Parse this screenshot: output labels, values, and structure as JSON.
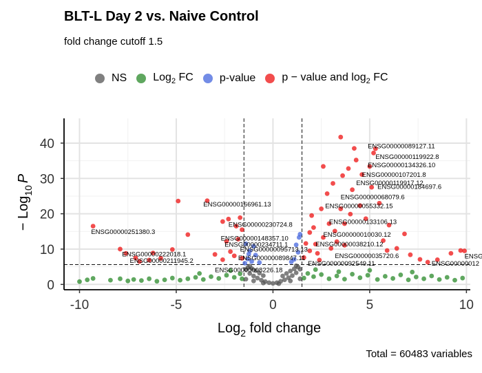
{
  "chart_data": {
    "type": "scatter",
    "title": "BLT-L Day 2 vs. Naive Control",
    "subtitle": "fold change cutoff 1.5",
    "caption": "Total = 60483 variables",
    "xlabel": {
      "base": "Log",
      "sub": "2",
      "rest": " fold change"
    },
    "ylabel": {
      "pre": "− Log",
      "sub": "10",
      "italic": "P"
    },
    "xlim": [
      -10.8,
      10.2
    ],
    "ylim": [
      -1.5,
      47
    ],
    "xticks": [
      -10,
      -5,
      0,
      5,
      10
    ],
    "yticks": [
      0,
      10,
      20,
      30,
      40
    ],
    "grid": true,
    "legend_position": "top",
    "cutoffs": {
      "fold_change_x": [
        -1.5,
        1.5
      ],
      "p_value_y": 5.6
    },
    "legend": [
      {
        "key": "ns",
        "text": "NS",
        "color": "#555555"
      },
      {
        "key": "fc",
        "text": "Log",
        "sub": "2",
        "rest": " FC",
        "color": "#2a8a2a"
      },
      {
        "key": "p",
        "text": "p-value",
        "color": "#4466dd"
      },
      {
        "key": "both",
        "text": "p − value and log",
        "sub": "2",
        "rest": " FC",
        "color": "#ee1111"
      }
    ],
    "series": [
      {
        "key": "ns",
        "color": "#555555",
        "points": [
          [
            -1.4,
            4.2
          ],
          [
            -1.2,
            3.1
          ],
          [
            -1.0,
            2.4
          ],
          [
            -0.8,
            1.8
          ],
          [
            -0.6,
            1.2
          ],
          [
            -0.4,
            0.8
          ],
          [
            -0.2,
            0.5
          ],
          [
            0.0,
            0.3
          ],
          [
            0.2,
            0.5
          ],
          [
            0.4,
            0.9
          ],
          [
            0.6,
            1.3
          ],
          [
            0.8,
            1.9
          ],
          [
            1.0,
            2.5
          ],
          [
            1.2,
            3.3
          ],
          [
            1.4,
            4.3
          ],
          [
            -1.3,
            4.8
          ],
          [
            -1.1,
            4.5
          ],
          [
            -0.9,
            3.9
          ],
          [
            -0.7,
            3.2
          ],
          [
            -0.5,
            2.5
          ],
          [
            0.5,
            2.4
          ],
          [
            0.7,
            3.1
          ],
          [
            0.9,
            3.8
          ],
          [
            1.1,
            4.4
          ],
          [
            1.3,
            4.9
          ],
          [
            -1.4,
            1.5
          ],
          [
            -1.0,
            1.0
          ],
          [
            -0.5,
            0.4
          ],
          [
            0.3,
            0.2
          ],
          [
            0.9,
            1.0
          ],
          [
            1.4,
            1.6
          ],
          [
            -1.2,
            5.2
          ],
          [
            1.2,
            5.3
          ]
        ]
      },
      {
        "key": "fc",
        "color": "#2a8a2a",
        "points": [
          [
            -10,
            0.8
          ],
          [
            -9.3,
            1.7
          ],
          [
            -8.4,
            1.2
          ],
          [
            -7.9,
            1.6
          ],
          [
            -7.5,
            1.0
          ],
          [
            -7.2,
            1.4
          ],
          [
            -6.8,
            1.1
          ],
          [
            -6.4,
            1.6
          ],
          [
            -6.0,
            0.9
          ],
          [
            -5.6,
            1.3
          ],
          [
            -5.2,
            1.8
          ],
          [
            -4.8,
            1.2
          ],
          [
            -4.4,
            1.6
          ],
          [
            -4.0,
            2.0
          ],
          [
            -3.6,
            1.4
          ],
          [
            -3.2,
            2.2
          ],
          [
            -2.8,
            1.7
          ],
          [
            -2.4,
            2.6
          ],
          [
            -2.0,
            2.0
          ],
          [
            -1.7,
            3.0
          ],
          [
            -1.6,
            1.6
          ],
          [
            1.6,
            1.8
          ],
          [
            1.8,
            3.1
          ],
          [
            2.1,
            2.2
          ],
          [
            2.5,
            2.8
          ],
          [
            2.9,
            1.6
          ],
          [
            3.3,
            2.4
          ],
          [
            3.7,
            1.5
          ],
          [
            4.1,
            2.9
          ],
          [
            4.5,
            1.9
          ],
          [
            4.9,
            2.6
          ],
          [
            5.4,
            1.4
          ],
          [
            5.8,
            2.3
          ],
          [
            6.2,
            1.7
          ],
          [
            6.6,
            2.7
          ],
          [
            7.0,
            1.3
          ],
          [
            7.4,
            2.1
          ],
          [
            7.8,
            1.6
          ],
          [
            8.2,
            2.4
          ],
          [
            8.6,
            1.4
          ],
          [
            9.0,
            2.0
          ],
          [
            9.4,
            1.2
          ],
          [
            9.8,
            1.8
          ],
          [
            -3.8,
            3.1
          ],
          [
            -2.2,
            3.9
          ],
          [
            2.2,
            4.2
          ],
          [
            3.4,
            3.6
          ],
          [
            5.0,
            4.0
          ],
          [
            7.2,
            3.5
          ],
          [
            -9.6,
            1.3
          ]
        ]
      },
      {
        "key": "p",
        "color": "#4466dd",
        "points": [
          [
            -1.45,
            6.0
          ],
          [
            -1.3,
            7.2
          ],
          [
            -1.1,
            6.5
          ],
          [
            -0.9,
            8.3
          ],
          [
            -0.7,
            6.2
          ],
          [
            -1.2,
            9.5
          ],
          [
            -1.0,
            10.8
          ],
          [
            1.1,
            7.1
          ],
          [
            1.3,
            9.1
          ],
          [
            1.2,
            11.2
          ],
          [
            1.35,
            13.3
          ],
          [
            1.4,
            14.2
          ],
          [
            -1.4,
            11.5
          ],
          [
            0.95,
            6.4
          ],
          [
            -1.25,
            8.6
          ]
        ]
      },
      {
        "key": "both",
        "color": "#ee1111",
        "points": [
          [
            -9.3,
            16.5
          ],
          [
            -7.9,
            10.0
          ],
          [
            -7.6,
            8.8
          ],
          [
            -6.9,
            6.5
          ],
          [
            -6.4,
            6.9
          ],
          [
            -5.2,
            9.9
          ],
          [
            -4.9,
            23.6
          ],
          [
            -4.4,
            14.1
          ],
          [
            -3.4,
            23.7
          ],
          [
            -2.6,
            17.8
          ],
          [
            -2.4,
            12.2
          ],
          [
            -2.2,
            9.3
          ],
          [
            -2.0,
            8.1
          ],
          [
            -1.8,
            12.8
          ],
          [
            -1.6,
            7.4
          ],
          [
            -1.7,
            18.9
          ],
          [
            -2.3,
            18.5
          ],
          [
            -1.9,
            16.5
          ],
          [
            -1.6,
            15.5
          ],
          [
            -2.6,
            7.0
          ],
          [
            -3.0,
            8.5
          ],
          [
            -5.8,
            7.4
          ],
          [
            -6.2,
            8.9
          ],
          [
            -7.1,
            7.5
          ],
          [
            1.6,
            7.6
          ],
          [
            1.7,
            11.6
          ],
          [
            1.9,
            14.7
          ],
          [
            2.0,
            19.5
          ],
          [
            2.1,
            16.1
          ],
          [
            2.2,
            11.4
          ],
          [
            2.3,
            8.8
          ],
          [
            2.5,
            21.4
          ],
          [
            2.6,
            13.3
          ],
          [
            2.8,
            25.7
          ],
          [
            2.9,
            17.2
          ],
          [
            3.0,
            10.2
          ],
          [
            3.1,
            28.6
          ],
          [
            3.2,
            15.1
          ],
          [
            3.3,
            12.1
          ],
          [
            3.5,
            21.4
          ],
          [
            3.6,
            30.8
          ],
          [
            3.7,
            17.2
          ],
          [
            3.9,
            32.8
          ],
          [
            4.0,
            19.9
          ],
          [
            4.1,
            26.8
          ],
          [
            4.3,
            35.2
          ],
          [
            4.5,
            22.3
          ],
          [
            4.6,
            31.1
          ],
          [
            4.8,
            18.6
          ],
          [
            5.0,
            33.4
          ],
          [
            5.1,
            27.5
          ],
          [
            5.3,
            38.4
          ],
          [
            5.5,
            23.0
          ],
          [
            5.7,
            12.4
          ],
          [
            6.0,
            16.8
          ],
          [
            6.4,
            10.2
          ],
          [
            6.8,
            14.3
          ],
          [
            3.5,
            41.7
          ],
          [
            4.2,
            38.5
          ],
          [
            5.2,
            37.2
          ],
          [
            5.9,
            9.6
          ],
          [
            7.1,
            8.4
          ],
          [
            7.6,
            7.1
          ],
          [
            8.0,
            6.3
          ],
          [
            8.5,
            7.0
          ],
          [
            9.2,
            8.8
          ],
          [
            9.7,
            9.6
          ],
          [
            9.9,
            9.5
          ],
          [
            2.4,
            6.9
          ],
          [
            1.9,
            9.5
          ],
          [
            2.6,
            33.4
          ],
          [
            3.7,
            11.1
          ]
        ]
      }
    ],
    "annotations": [
      {
        "text": "ENSG00000089127.11",
        "x": 4.9,
        "y": 38.5
      },
      {
        "text": "ENSG00000119922.8",
        "x": 5.3,
        "y": 35.5
      },
      {
        "text": "ENSG00000134326.10",
        "x": 4.9,
        "y": 33.2
      },
      {
        "text": "ENSG00000107201.8",
        "x": 4.6,
        "y": 30.4
      },
      {
        "text": "ENSG00000119917.12",
        "x": 4.3,
        "y": 28.1
      },
      {
        "text": "ENSG00000184697.6",
        "x": 5.4,
        "y": 27.0
      },
      {
        "text": "ENSG00000068079.6",
        "x": 3.5,
        "y": 24.1
      },
      {
        "text": "ENSG00000055332.15",
        "x": 2.7,
        "y": 21.6
      },
      {
        "text": "ENSG00000166961.13",
        "x": -3.6,
        "y": 22.1
      },
      {
        "text": "ENSG00000133106.13",
        "x": 2.9,
        "y": 17.1
      },
      {
        "text": "ENSG00000251380.3",
        "x": -9.4,
        "y": 14.3
      },
      {
        "text": "ENSG00000230724.8",
        "x": -2.3,
        "y": 16.3
      },
      {
        "text": "ENSG00000010030.12",
        "x": 2.6,
        "y": 13.5
      },
      {
        "text": "ENSG00000148357.10",
        "x": -2.7,
        "y": 12.4
      },
      {
        "text": "ENSG00000234711.1",
        "x": -2.5,
        "y": 10.7
      },
      {
        "text": "ENSG00000038210.12",
        "x": 2.2,
        "y": 10.8
      },
      {
        "text": "ENSG00000095713.13",
        "x": -1.7,
        "y": 9.3
      },
      {
        "text": "ENSG00000222018.1",
        "x": -7.8,
        "y": 7.9
      },
      {
        "text": "ENSG00000089847.11",
        "x": -1.8,
        "y": 6.9
      },
      {
        "text": "ENSG00000035720.6",
        "x": 3.2,
        "y": 7.5
      },
      {
        "text": "ENSG00000211945.2",
        "x": -7.4,
        "y": 6.1
      },
      {
        "text": "ENSG00000092549.11",
        "x": 1.8,
        "y": 5.3
      },
      {
        "text": "ENSG00000008226.18",
        "x": -3.0,
        "y": 3.5
      },
      {
        "text": "ENSG00000012",
        "x": 8.2,
        "y": 5.3
      },
      {
        "text": "ENSG",
        "x": 9.9,
        "y": 7.4
      }
    ]
  }
}
